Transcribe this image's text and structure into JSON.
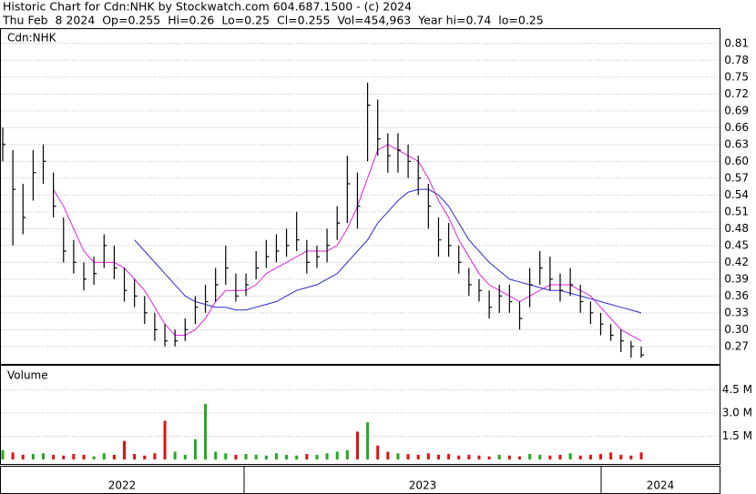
{
  "header": {
    "line1": "Historic Chart for Cdn:NHK by Stockwatch.com 604.687.1500 - (c) 2024",
    "line2": "Thu Feb  8 2024  Op=0.255  Hi=0.26  Lo=0.25  Cl=0.255  Vol=454,963  Year hi=0.74  lo=0.25"
  },
  "chart_data": [
    {
      "type": "hlc",
      "title": "Cdn:NHK",
      "bar_color": "#000000",
      "grid": true,
      "ylim": [
        0.239,
        0.834
      ],
      "yticks": [
        0.27,
        {
          "value": 0.3,
          "label": "0.30"
        },
        0.33,
        0.36,
        0.39,
        0.42,
        0.45,
        0.48,
        0.51,
        0.54,
        0.57,
        {
          "value": 0.6,
          "label": "0.60"
        },
        0.63,
        0.66,
        0.69,
        0.72,
        0.75,
        0.78,
        0.81
      ],
      "high": [
        0.66,
        0.62,
        0.56,
        0.62,
        0.63,
        0.58,
        0.5,
        0.46,
        0.42,
        0.43,
        0.47,
        0.45,
        0.41,
        0.39,
        0.36,
        0.33,
        0.31,
        0.3,
        0.32,
        0.36,
        0.38,
        0.41,
        0.45,
        0.4,
        0.4,
        0.44,
        0.46,
        0.47,
        0.48,
        0.51,
        0.46,
        0.45,
        0.48,
        0.52,
        0.61,
        0.58,
        0.74,
        0.71,
        0.65,
        0.65,
        0.63,
        0.61,
        0.56,
        0.5,
        0.49,
        0.45,
        0.41,
        0.39,
        0.37,
        0.38,
        0.38,
        0.35,
        0.41,
        0.44,
        0.43,
        0.4,
        0.41,
        0.38,
        0.35,
        0.33,
        0.31,
        0.3,
        0.28,
        0.27
      ],
      "low": [
        0.6,
        0.45,
        0.47,
        0.53,
        0.56,
        0.5,
        0.42,
        0.4,
        0.37,
        0.38,
        0.41,
        0.39,
        0.35,
        0.34,
        0.31,
        0.28,
        0.27,
        0.27,
        0.28,
        0.31,
        0.33,
        0.35,
        0.38,
        0.35,
        0.36,
        0.39,
        0.41,
        0.42,
        0.43,
        0.44,
        0.4,
        0.41,
        0.42,
        0.46,
        0.49,
        0.48,
        0.6,
        0.61,
        0.58,
        0.58,
        0.57,
        0.54,
        0.48,
        0.43,
        0.43,
        0.4,
        0.36,
        0.35,
        0.32,
        0.33,
        0.33,
        0.3,
        0.34,
        0.38,
        0.37,
        0.35,
        0.36,
        0.33,
        0.31,
        0.29,
        0.28,
        0.26,
        0.25,
        0.25
      ],
      "close": [
        0.63,
        0.55,
        0.5,
        0.58,
        0.6,
        0.52,
        0.44,
        0.42,
        0.39,
        0.4,
        0.45,
        0.41,
        0.37,
        0.36,
        0.33,
        0.3,
        0.28,
        0.28,
        0.3,
        0.34,
        0.35,
        0.38,
        0.41,
        0.36,
        0.38,
        0.41,
        0.43,
        0.44,
        0.45,
        0.46,
        0.42,
        0.43,
        0.45,
        0.49,
        0.56,
        0.52,
        0.7,
        0.64,
        0.61,
        0.62,
        0.6,
        0.57,
        0.52,
        0.46,
        0.45,
        0.42,
        0.38,
        0.37,
        0.34,
        0.36,
        0.35,
        0.32,
        0.38,
        0.41,
        0.39,
        0.37,
        0.38,
        0.35,
        0.33,
        0.31,
        0.29,
        0.28,
        0.27,
        0.255
      ],
      "moving_averages": [
        {
          "color": "#e020e0",
          "values": [
            null,
            null,
            null,
            null,
            null,
            0.55,
            0.52,
            0.48,
            0.44,
            0.42,
            0.42,
            0.42,
            0.41,
            0.39,
            0.37,
            0.34,
            0.31,
            0.29,
            0.29,
            0.3,
            0.32,
            0.35,
            0.37,
            0.37,
            0.37,
            0.38,
            0.4,
            0.41,
            0.42,
            0.43,
            0.44,
            0.44,
            0.44,
            0.45,
            0.48,
            0.52,
            0.57,
            0.62,
            0.63,
            0.62,
            0.61,
            0.6,
            0.57,
            0.53,
            0.5,
            0.46,
            0.43,
            0.4,
            0.38,
            0.37,
            0.36,
            0.35,
            0.36,
            0.37,
            0.38,
            0.38,
            0.38,
            0.37,
            0.36,
            0.34,
            0.32,
            0.3,
            0.29,
            0.28
          ]
        },
        {
          "color": "#2a2ac8",
          "values": [
            null,
            null,
            null,
            null,
            null,
            null,
            null,
            null,
            null,
            null,
            null,
            null,
            null,
            0.46,
            0.44,
            0.42,
            0.4,
            0.38,
            0.36,
            0.35,
            0.345,
            0.34,
            0.34,
            0.335,
            0.335,
            0.34,
            0.345,
            0.35,
            0.36,
            0.37,
            0.375,
            0.38,
            0.39,
            0.4,
            0.42,
            0.44,
            0.46,
            0.49,
            0.51,
            0.53,
            0.545,
            0.55,
            0.55,
            0.54,
            0.52,
            0.49,
            0.46,
            0.44,
            0.42,
            0.405,
            0.39,
            0.385,
            0.38,
            0.375,
            0.37,
            0.37,
            0.365,
            0.36,
            0.355,
            0.35,
            0.345,
            0.34,
            0.335,
            0.33
          ]
        }
      ]
    },
    {
      "type": "bar",
      "title": "Volume",
      "up_color": "#22aa22",
      "down_color": "#dd1111",
      "ylim": [
        0,
        6000000
      ],
      "yticks": [
        {
          "value": 1500000,
          "label": "1.5 M"
        },
        {
          "value": 3000000,
          "label": "3.0 M"
        },
        {
          "value": 4500000,
          "label": "4.5 M"
        }
      ],
      "values": [
        600000,
        450000,
        300000,
        350000,
        400000,
        300000,
        250000,
        350000,
        300000,
        200000,
        400000,
        300000,
        1200000,
        350000,
        250000,
        400000,
        2500000,
        500000,
        300000,
        1300000,
        3600000,
        500000,
        400000,
        300000,
        350000,
        300000,
        250000,
        400000,
        300000,
        250000,
        350000,
        300000,
        400000,
        500000,
        600000,
        1800000,
        2400000,
        900000,
        500000,
        400000,
        350000,
        300000,
        400000,
        300000,
        350000,
        250000,
        300000,
        250000,
        200000,
        300000,
        250000,
        200000,
        350000,
        300000,
        250000,
        300000,
        400000,
        250000,
        300000,
        350000,
        450000,
        300000,
        250000,
        454963
      ],
      "x_period_labels": [
        "2022",
        "2023",
        "2024"
      ]
    }
  ]
}
